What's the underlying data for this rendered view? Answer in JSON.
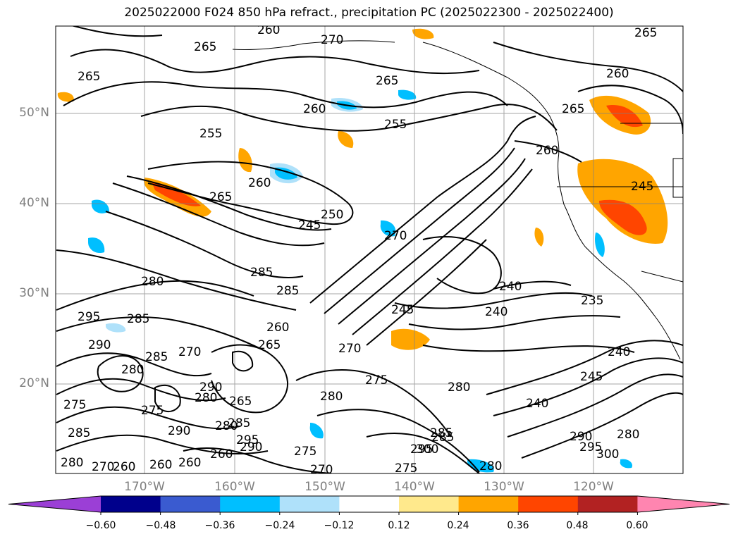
{
  "title": "2025022000 F024 850 hPa refract., precipitation PC (2025022300 - 2025022400)",
  "lat_labels": [
    "50°N",
    "40°N",
    "30°N",
    "20°N"
  ],
  "lon_labels": [
    "170°W",
    "160°W",
    "150°W",
    "140°W",
    "130°W",
    "120°W"
  ],
  "colorbar": {
    "ticks": [
      "−0.60",
      "−0.48",
      "−0.36",
      "−0.24",
      "−0.12",
      "0.12",
      "0.24",
      "0.36",
      "0.48",
      "0.60"
    ],
    "colors": [
      "#9b3fd6",
      "#00008c",
      "#3a5bd0",
      "#00bfff",
      "#afe1fa",
      "#ffffff",
      "#ffe98c",
      "#ffa500",
      "#ff4500",
      "#b22222",
      "#ff85b0"
    ]
  },
  "contour_labels": [
    "265",
    "270",
    "260",
    "265",
    "265",
    "260",
    "265",
    "255",
    "260",
    "265",
    "260",
    "260",
    "255",
    "245",
    "250",
    "265",
    "260",
    "280",
    "285",
    "285",
    "295",
    "290",
    "285",
    "270",
    "270",
    "265",
    "260",
    "240",
    "235",
    "240",
    "245",
    "240",
    "280",
    "275",
    "280",
    "285",
    "290",
    "275",
    "295",
    "300",
    "280",
    "265",
    "260",
    "260",
    "260",
    "295",
    "280",
    "270",
    "275",
    "280",
    "275",
    "290",
    "285",
    "285",
    "295",
    "300",
    "280",
    "270",
    "280",
    "275",
    "285",
    "290",
    "285",
    "290",
    "280",
    "270",
    "245",
    "240",
    "245"
  ]
}
